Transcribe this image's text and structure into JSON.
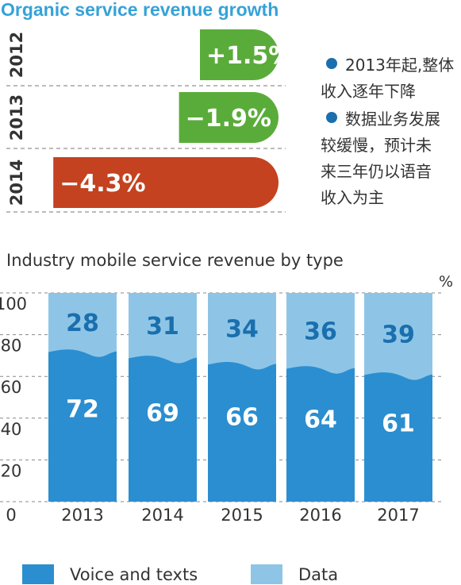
{
  "chart_data": [
    {
      "type": "bar",
      "orientation": "horizontal",
      "title": "Organic service revenue growth",
      "categories": [
        "2012",
        "2013",
        "2014"
      ],
      "values": [
        1.5,
        -1.9,
        -4.3
      ],
      "value_labels": [
        "+1.5%",
        "−1.9%",
        "−4.3%"
      ],
      "colors": [
        "#5aac3a",
        "#5aac3a",
        "#c4421f"
      ],
      "annotations": [
        "2013年起,整体收入逐年下降",
        "数据业务发展较缓慢，预计未来三年仍以语音收入为主"
      ],
      "annotation_bullet_color": "#1a6fae"
    },
    {
      "type": "bar",
      "stacked": true,
      "title": "Industry mobile service revenue by type",
      "unit": "%",
      "categories": [
        "2013",
        "2014",
        "2015",
        "2016",
        "2017"
      ],
      "series": [
        {
          "name": "Voice and texts",
          "values": [
            72,
            69,
            66,
            64,
            61
          ],
          "color": "#2b8ed0",
          "label_color": "#ffffff"
        },
        {
          "name": "Data",
          "values": [
            28,
            31,
            34,
            36,
            39
          ],
          "color": "#8ec5e6",
          "label_color": "#1a6fae"
        }
      ],
      "ylim": [
        0,
        100
      ],
      "yticks": [
        "0",
        "20",
        "40",
        "60",
        "80",
        "100"
      ],
      "grid": true,
      "legend": "bottom"
    }
  ]
}
